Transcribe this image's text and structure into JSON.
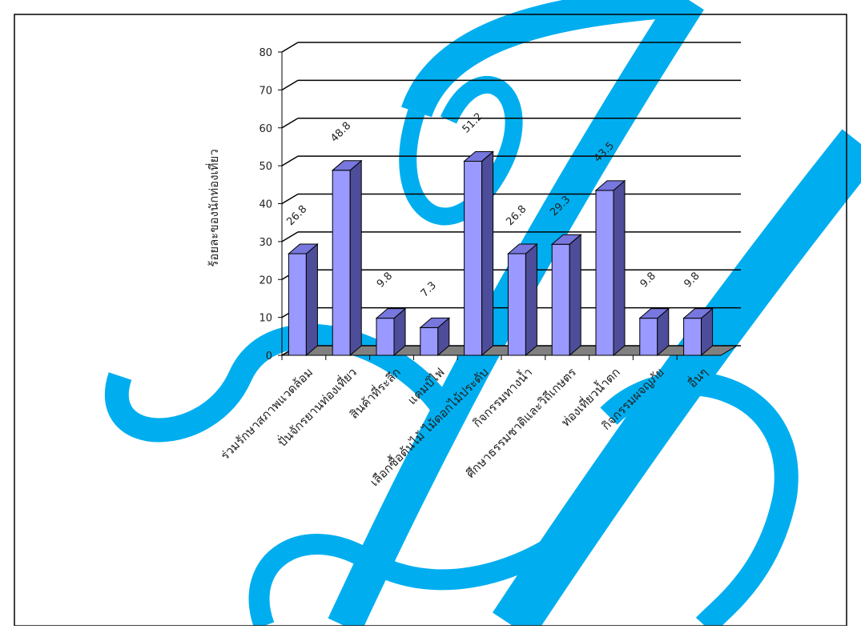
{
  "chart_data": {
    "type": "bar3d",
    "y_label": "ร้อยละของนักท่องเที่ยว",
    "categories": [
      "ร่วมรักษาสภาพแวดล้อม",
      "ปั่นจักรยานท่องเที่ยว",
      "สินค้าที่ระลึก",
      "แคมป์ไฟ",
      "เลือกซื้อต้นไม้ ไม้ดอกไม้ประดับ",
      "กิจกรรมทางน้ำ",
      "ศึกษาธรรมชาติและวิถีเกษตร",
      "ท่องเที่ยวน้ำตก",
      "กิจกรรมผจญภัย",
      "อื่นๆ"
    ],
    "values": [
      26.8,
      48.8,
      9.8,
      7.3,
      51.2,
      26.8,
      29.3,
      43.5,
      9.8,
      9.8
    ],
    "color": "#9999ff",
    "ylim": [
      0,
      80
    ],
    "yticks": [
      0,
      10,
      20,
      30,
      40,
      50,
      60,
      70,
      80
    ],
    "grid": true
  }
}
